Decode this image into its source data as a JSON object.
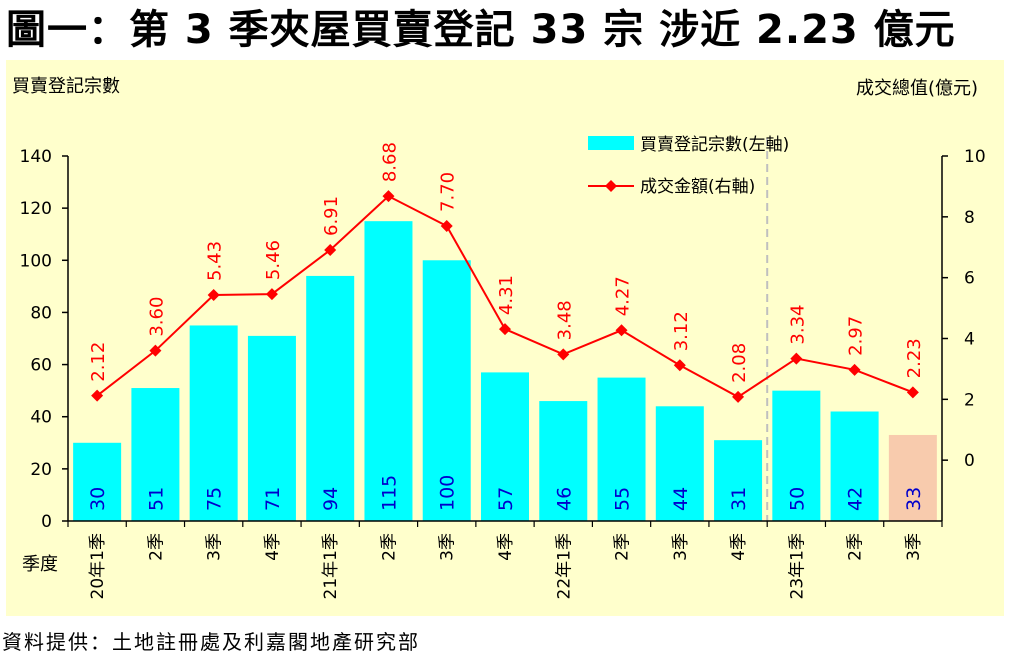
{
  "title": "圖一：第 3 季夾屋買賣登記 33 宗  涉近 2.23 億元",
  "source": "資料提供：土地註冊處及利嘉閣地產研究部",
  "chart_data": {
    "type": "bar",
    "left_axis_title": "買賣登記宗數",
    "right_axis_title": "成交總值(億元)",
    "x_axis_title": "季度",
    "categories": [
      "20年1季",
      "2季",
      "3季",
      "4季",
      "21年1季",
      "2季",
      "3季",
      "4季",
      "22年1季",
      "2季",
      "3季",
      "4季",
      "23年1季",
      "2季",
      "3季"
    ],
    "series": [
      {
        "name": "買賣登記宗數(左軸)",
        "type": "bar",
        "axis": "left",
        "values": [
          30,
          51,
          75,
          71,
          94,
          115,
          100,
          57,
          46,
          55,
          44,
          31,
          50,
          42,
          33
        ]
      },
      {
        "name": "成交金額(右軸)",
        "type": "line",
        "axis": "right",
        "values": [
          2.12,
          3.6,
          5.43,
          5.46,
          6.91,
          8.68,
          7.7,
          4.31,
          3.48,
          4.27,
          3.12,
          2.08,
          3.34,
          2.97,
          2.23
        ]
      }
    ],
    "bar_labels": [
      "30",
      "51",
      "75",
      "71",
      "94",
      "115",
      "100",
      "57",
      "46",
      "55",
      "44",
      "31",
      "50",
      "42",
      "33"
    ],
    "line_labels": [
      "2.12",
      "3.60",
      "5.43",
      "5.46",
      "6.91",
      "8.68",
      "7.70",
      "4.31",
      "3.48",
      "4.27",
      "3.12",
      "2.08",
      "3.34",
      "2.97",
      "2.23"
    ],
    "left_ylim": [
      0,
      140
    ],
    "left_ticks": [
      "0",
      "20",
      "40",
      "60",
      "80",
      "100",
      "120",
      "140"
    ],
    "right_ylim": [
      -2,
      10
    ],
    "right_ticks": [
      "0",
      "2",
      "4",
      "6",
      "8",
      "10"
    ],
    "legend": [
      "買賣登記宗數(左軸)",
      "成交金額(右軸)"
    ],
    "legend_position": "top-right",
    "colors": {
      "bar": "#00ffff",
      "bar_highlight": "#f8cbad",
      "line": "#ff0000",
      "marker": "#ff0000",
      "line_label": "#ff0000",
      "bar_label": "#0000cc",
      "panel": "#ffffcc",
      "divider": "#bfbfbf"
    },
    "highlight_index": 14,
    "divider_after_index": 11
  }
}
